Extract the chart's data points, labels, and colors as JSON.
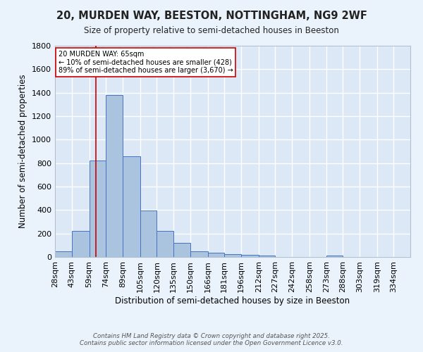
{
  "title_line1": "20, MURDEN WAY, BEESTON, NOTTINGHAM, NG9 2WF",
  "title_line2": "Size of property relative to semi-detached houses in Beeston",
  "xlabel": "Distribution of semi-detached houses by size in Beeston",
  "ylabel": "Number of semi-detached properties",
  "bin_labels": [
    "28sqm",
    "43sqm",
    "59sqm",
    "74sqm",
    "89sqm",
    "105sqm",
    "120sqm",
    "135sqm",
    "150sqm",
    "166sqm",
    "181sqm",
    "196sqm",
    "212sqm",
    "227sqm",
    "242sqm",
    "258sqm",
    "273sqm",
    "288sqm",
    "303sqm",
    "319sqm",
    "334sqm"
  ],
  "bar_values": [
    50,
    220,
    820,
    1380,
    860,
    395,
    220,
    120,
    50,
    35,
    25,
    20,
    15,
    0,
    0,
    0,
    10,
    0,
    0,
    0,
    0
  ],
  "bar_color": "#aac4e0",
  "bar_edge_color": "#4472c4",
  "background_color": "#dce8f5",
  "fig_background_color": "#eaf2fb",
  "grid_color": "#ffffff",
  "ylim": [
    0,
    1800
  ],
  "yticks": [
    0,
    200,
    400,
    600,
    800,
    1000,
    1200,
    1400,
    1600,
    1800
  ],
  "property_line_x": 65,
  "property_line_color": "#cc0000",
  "annotation_text": "20 MURDEN WAY: 65sqm\n← 10% of semi-detached houses are smaller (428)\n89% of semi-detached houses are larger (3,670) →",
  "annotation_box_color": "#ffffff",
  "annotation_border_color": "#cc0000",
  "bin_edges": [
    28,
    43,
    59,
    74,
    89,
    105,
    120,
    135,
    150,
    166,
    181,
    196,
    212,
    227,
    242,
    258,
    273,
    288,
    303,
    319,
    334,
    349
  ],
  "footer_line1": "Contains HM Land Registry data © Crown copyright and database right 2025.",
  "footer_line2": "Contains public sector information licensed under the Open Government Licence v3.0."
}
